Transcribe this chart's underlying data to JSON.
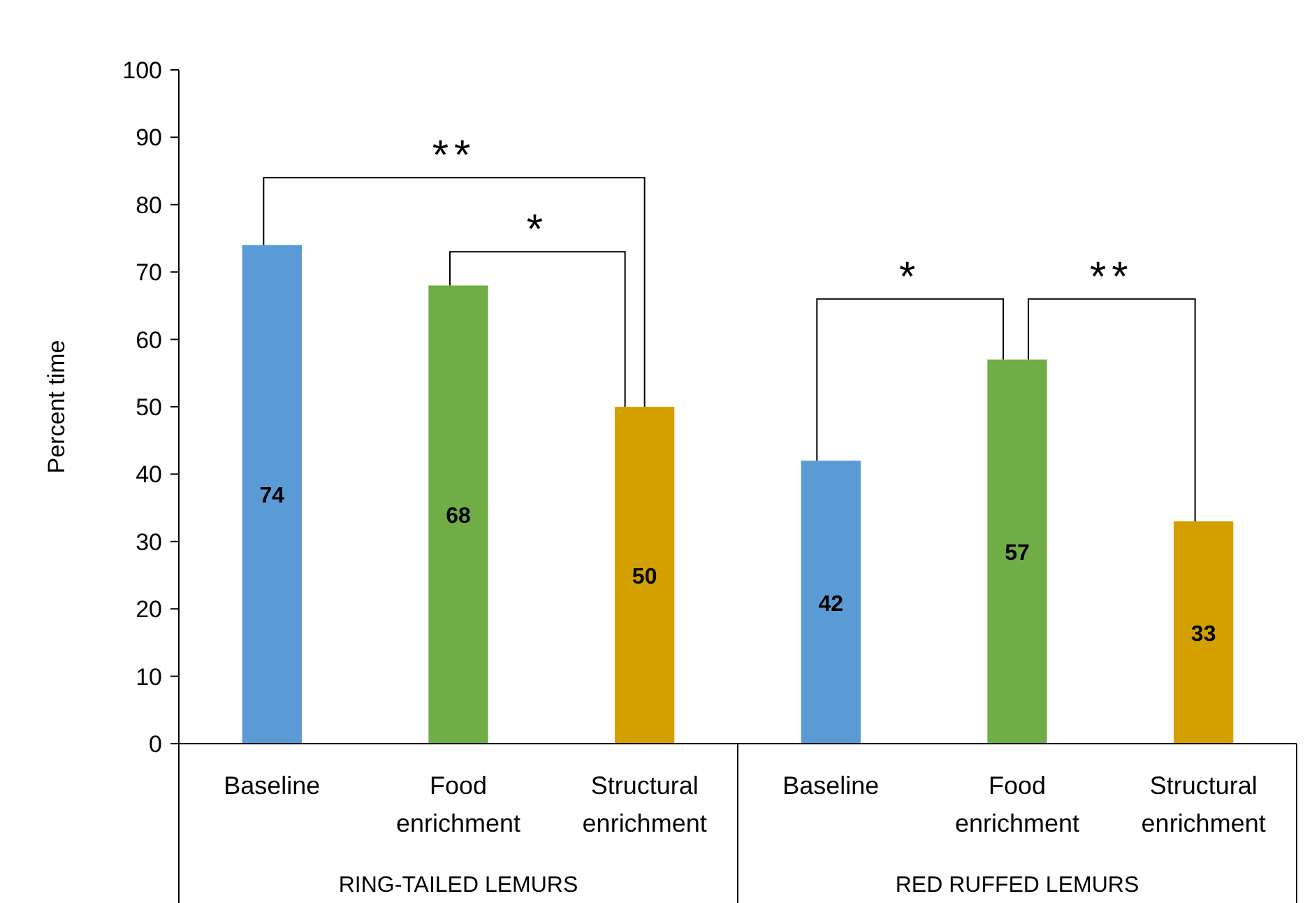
{
  "chart_data": {
    "type": "bar",
    "ylabel": "Percent time",
    "categories": [
      "Baseline",
      "Food enrichment",
      "Structural enrichment",
      "Baseline",
      "Food enrichment",
      "Structural enrichment"
    ],
    "values": [
      74,
      68,
      50,
      42,
      57,
      33
    ],
    "colors": [
      "#5b9bd5",
      "#70ad47",
      "#d4a000",
      "#5b9bd5",
      "#70ad47",
      "#d4a000"
    ],
    "ylim": [
      0,
      100
    ],
    "yticks": [
      0,
      10,
      20,
      30,
      40,
      50,
      60,
      70,
      80,
      90,
      100
    ],
    "grid": false,
    "data_labels": true,
    "annotations": [
      "**",
      "*",
      "*",
      "**",
      "RING-TAILED LEMURS",
      "RED RUFFED LEMURS"
    ]
  }
}
